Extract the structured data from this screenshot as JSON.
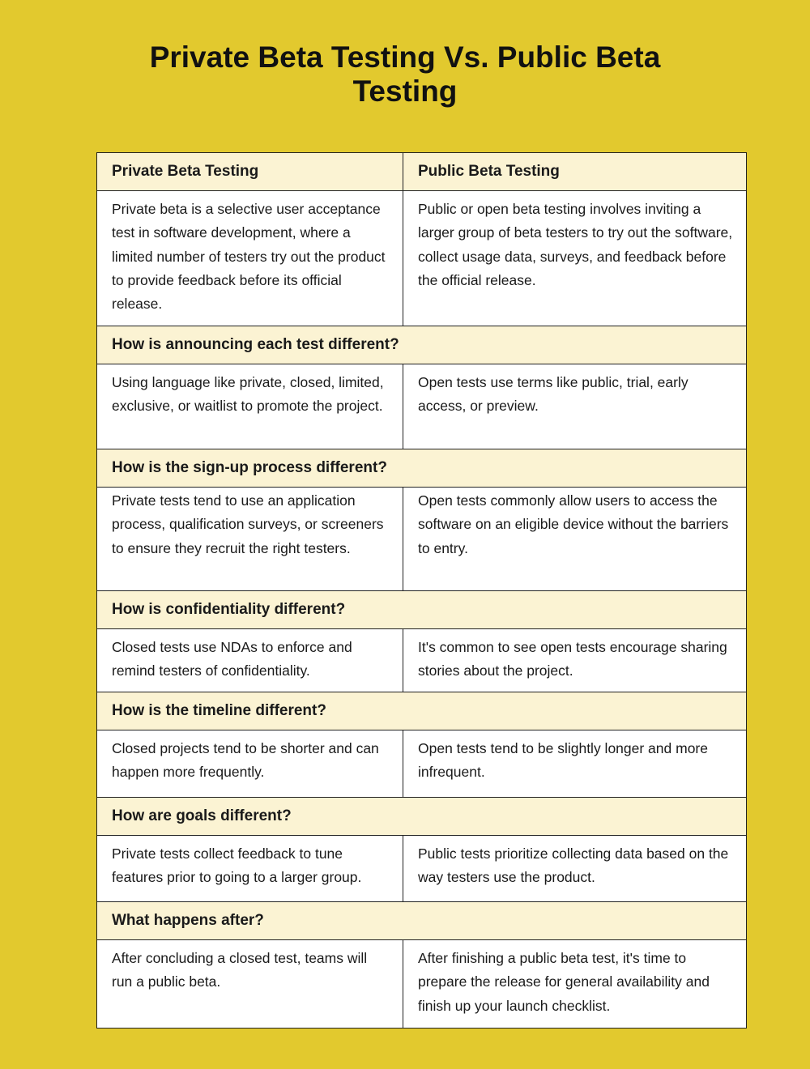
{
  "title_lines": [
    "Private Beta Testing Vs. Public Beta",
    "Testing"
  ],
  "columns": {
    "left": "Private Beta Testing",
    "right": "Public Beta Testing"
  },
  "intro": {
    "left": "Private beta is a selective user acceptance test in software development, where a limited number of testers try out the product to provide feedback before its official release.",
    "right": "Public or open beta testing involves inviting a larger group of beta testers to try out the software, collect usage data, surveys, and feedback before the official release."
  },
  "sections": [
    {
      "question": "How is announcing each test different?",
      "left": "Using language like private, closed, limited, exclusive, or waitlist to promote the project.",
      "right": "Open tests use terms like public, trial, early access, or preview."
    },
    {
      "question": "How is the sign-up process different?",
      "left": "Private tests tend to use an application process, qualification surveys, or screeners to ensure they recruit the right testers.",
      "right": "Open tests commonly allow users to access the software on an eligible device without the barriers to entry."
    },
    {
      "question": "How is confidentiality different?",
      "left": "Closed tests use NDAs to enforce and remind testers of confidentiality.",
      "right": "It's common to see open tests encourage sharing stories about the project."
    },
    {
      "question": "How is the timeline different?",
      "left": "Closed projects tend to be shorter and can happen more frequently.",
      "right": "Open tests tend to be slightly longer and more infrequent."
    },
    {
      "question": "How are goals different?",
      "left": "Private tests collect feedback to tune features prior to going to a larger group.",
      "right": "Public tests prioritize collecting data based on the way testers use the product."
    },
    {
      "question": "What happens after?",
      "left": "After concluding a closed test, teams will run a public beta.",
      "right": "After finishing a public beta test, it's time to prepare the release for general availability and finish up your launch checklist."
    }
  ],
  "colors": {
    "background": "#E2C92E",
    "header_fill": "#FBF3D3",
    "cell_fill": "#FFFFFF",
    "border": "#222222"
  }
}
